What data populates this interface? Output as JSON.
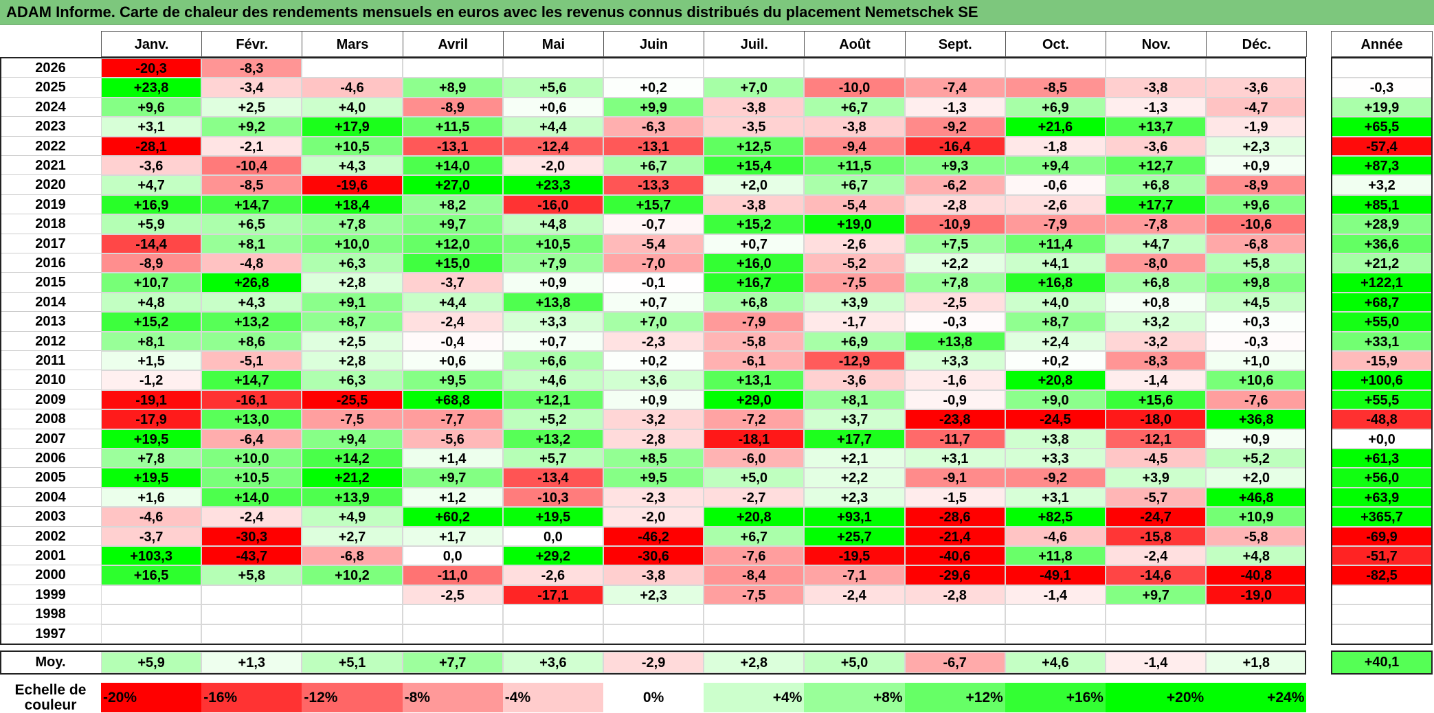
{
  "title": "ADAM Informe. Carte de chaleur des rendements mensuels en euros avec les revenus connus distribués du placement Nemetschek SE",
  "colors": {
    "title_bg": "#7dc77d",
    "positive_max": "#00ff00",
    "negative_max": "#ff0000",
    "neutral": "#ffffff"
  },
  "chart_data": {
    "type": "heatmap",
    "months": [
      "Janv.",
      "Févr.",
      "Mars",
      "Avril",
      "Mai",
      "Juin",
      "Juil.",
      "Août",
      "Sept.",
      "Oct.",
      "Nov.",
      "Déc."
    ],
    "year_header": "Année",
    "rows": [
      {
        "year": "2026",
        "values": [
          "-20,3",
          "-8,3",
          "",
          "",
          "",
          "",
          "",
          "",
          "",
          "",
          "",
          ""
        ],
        "annual": ""
      },
      {
        "year": "2025",
        "values": [
          "+23,8",
          "-3,4",
          "-4,6",
          "+8,9",
          "+5,6",
          "+0,2",
          "+7,0",
          "-10,0",
          "-7,4",
          "-8,5",
          "-3,8",
          "-3,6"
        ],
        "annual": "-0,3"
      },
      {
        "year": "2024",
        "values": [
          "+9,6",
          "+2,5",
          "+4,0",
          "-8,9",
          "+0,6",
          "+9,9",
          "-3,8",
          "+6,7",
          "-1,3",
          "+6,9",
          "-1,3",
          "-4,7"
        ],
        "annual": "+19,9"
      },
      {
        "year": "2023",
        "values": [
          "+3,1",
          "+9,2",
          "+17,9",
          "+11,5",
          "+4,4",
          "-6,3",
          "-3,5",
          "-3,8",
          "-9,2",
          "+21,6",
          "+13,7",
          "-1,9"
        ],
        "annual": "+65,5"
      },
      {
        "year": "2022",
        "values": [
          "-28,1",
          "-2,1",
          "+10,5",
          "-13,1",
          "-12,4",
          "-13,1",
          "+12,5",
          "-9,4",
          "-16,4",
          "-1,8",
          "-3,6",
          "+2,3"
        ],
        "annual": "-57,4"
      },
      {
        "year": "2021",
        "values": [
          "-3,6",
          "-10,4",
          "+4,3",
          "+14,0",
          "-2,0",
          "+6,7",
          "+15,4",
          "+11,5",
          "+9,3",
          "+9,4",
          "+12,7",
          "+0,9"
        ],
        "annual": "+87,3"
      },
      {
        "year": "2020",
        "values": [
          "+4,7",
          "-8,5",
          "-19,6",
          "+27,0",
          "+23,3",
          "-13,3",
          "+2,0",
          "+6,7",
          "-6,2",
          "-0,6",
          "+6,8",
          "-8,9"
        ],
        "annual": "+3,2"
      },
      {
        "year": "2019",
        "values": [
          "+16,9",
          "+14,7",
          "+18,4",
          "+8,2",
          "-16,0",
          "+15,7",
          "-3,8",
          "-5,4",
          "-2,8",
          "-2,6",
          "+17,7",
          "+9,6"
        ],
        "annual": "+85,1"
      },
      {
        "year": "2018",
        "values": [
          "+5,9",
          "+6,5",
          "+7,8",
          "+9,7",
          "+4,8",
          "-0,7",
          "+15,2",
          "+19,0",
          "-10,9",
          "-7,9",
          "-7,8",
          "-10,6"
        ],
        "annual": "+28,9"
      },
      {
        "year": "2017",
        "values": [
          "-14,4",
          "+8,1",
          "+10,0",
          "+12,0",
          "+10,5",
          "-5,4",
          "+0,7",
          "-2,6",
          "+7,5",
          "+11,4",
          "+4,7",
          "-6,8"
        ],
        "annual": "+36,6"
      },
      {
        "year": "2016",
        "values": [
          "-8,9",
          "-4,8",
          "+6,3",
          "+15,0",
          "+7,9",
          "-7,0",
          "+16,0",
          "-5,2",
          "+2,2",
          "+4,1",
          "-8,0",
          "+5,8"
        ],
        "annual": "+21,2"
      },
      {
        "year": "2015",
        "values": [
          "+10,7",
          "+26,8",
          "+2,8",
          "-3,7",
          "+0,9",
          "-0,1",
          "+16,7",
          "-7,5",
          "+7,8",
          "+16,8",
          "+6,8",
          "+9,8"
        ],
        "annual": "+122,1"
      },
      {
        "year": "2014",
        "values": [
          "+4,8",
          "+4,3",
          "+9,1",
          "+4,4",
          "+13,8",
          "+0,7",
          "+6,8",
          "+3,9",
          "-2,5",
          "+4,0",
          "+0,8",
          "+4,5"
        ],
        "annual": "+68,7"
      },
      {
        "year": "2013",
        "values": [
          "+15,2",
          "+13,2",
          "+8,7",
          "-2,4",
          "+3,3",
          "+7,0",
          "-7,9",
          "-1,7",
          "-0,3",
          "+8,7",
          "+3,2",
          "+0,3"
        ],
        "annual": "+55,0"
      },
      {
        "year": "2012",
        "values": [
          "+8,1",
          "+8,6",
          "+2,5",
          "-0,4",
          "+0,7",
          "-2,3",
          "-5,8",
          "+6,9",
          "+13,8",
          "+2,4",
          "-3,2",
          "-0,3"
        ],
        "annual": "+33,1"
      },
      {
        "year": "2011",
        "values": [
          "+1,5",
          "-5,1",
          "+2,8",
          "+0,6",
          "+6,6",
          "+0,2",
          "-6,1",
          "-12,9",
          "+3,3",
          "+0,2",
          "-8,3",
          "+1,0"
        ],
        "annual": "-15,9"
      },
      {
        "year": "2010",
        "values": [
          "-1,2",
          "+14,7",
          "+6,3",
          "+9,5",
          "+4,6",
          "+3,6",
          "+13,1",
          "-3,6",
          "-1,6",
          "+20,8",
          "-1,4",
          "+10,6"
        ],
        "annual": "+100,6"
      },
      {
        "year": "2009",
        "values": [
          "-19,1",
          "-16,1",
          "-25,5",
          "+68,8",
          "+12,1",
          "+0,9",
          "+29,0",
          "+8,1",
          "-0,9",
          "+9,0",
          "+15,6",
          "-7,6"
        ],
        "annual": "+55,5"
      },
      {
        "year": "2008",
        "values": [
          "-17,9",
          "+13,0",
          "-7,5",
          "-7,7",
          "+5,2",
          "-3,2",
          "-7,2",
          "+3,7",
          "-23,8",
          "-24,5",
          "-18,0",
          "+36,8"
        ],
        "annual": "-48,8"
      },
      {
        "year": "2007",
        "values": [
          "+19,5",
          "-6,4",
          "+9,4",
          "-5,6",
          "+13,2",
          "-2,8",
          "-18,1",
          "+17,7",
          "-11,7",
          "+3,8",
          "-12,1",
          "+0,9"
        ],
        "annual": "+0,0"
      },
      {
        "year": "2006",
        "values": [
          "+7,8",
          "+10,0",
          "+14,2",
          "+1,4",
          "+5,7",
          "+8,5",
          "-6,0",
          "+2,1",
          "+3,1",
          "+3,3",
          "-4,5",
          "+5,2"
        ],
        "annual": "+61,3"
      },
      {
        "year": "2005",
        "values": [
          "+19,5",
          "+10,5",
          "+21,2",
          "+9,7",
          "-13,4",
          "+9,5",
          "+5,0",
          "+2,2",
          "-9,1",
          "-9,2",
          "+3,9",
          "+2,0"
        ],
        "annual": "+56,0"
      },
      {
        "year": "2004",
        "values": [
          "+1,6",
          "+14,0",
          "+13,9",
          "+1,2",
          "-10,3",
          "-2,3",
          "-2,7",
          "+2,3",
          "-1,5",
          "+3,1",
          "-5,7",
          "+46,8"
        ],
        "annual": "+63,9"
      },
      {
        "year": "2003",
        "values": [
          "-4,6",
          "-2,4",
          "+4,9",
          "+60,2",
          "+19,5",
          "-2,0",
          "+20,8",
          "+93,1",
          "-28,6",
          "+82,5",
          "-24,7",
          "+10,9"
        ],
        "annual": "+365,7"
      },
      {
        "year": "2002",
        "values": [
          "-3,7",
          "-30,3",
          "+2,7",
          "+1,7",
          "0,0",
          "-46,2",
          "+6,7",
          "+25,7",
          "-21,4",
          "-4,6",
          "-15,8",
          "-5,8"
        ],
        "annual": "-69,9"
      },
      {
        "year": "2001",
        "values": [
          "+103,3",
          "-43,7",
          "-6,8",
          "0,0",
          "+29,2",
          "-30,6",
          "-7,6",
          "-19,5",
          "-40,6",
          "+11,8",
          "-2,4",
          "+4,8"
        ],
        "annual": "-51,7"
      },
      {
        "year": "2000",
        "values": [
          "+16,5",
          "+5,8",
          "+10,2",
          "-11,0",
          "-2,6",
          "-3,8",
          "-8,4",
          "-7,1",
          "-29,6",
          "-49,1",
          "-14,6",
          "-40,8"
        ],
        "annual": "-82,5"
      },
      {
        "year": "1999",
        "values": [
          "",
          "",
          "",
          "-2,5",
          "-17,1",
          "+2,3",
          "-7,5",
          "-2,4",
          "-2,8",
          "-1,4",
          "+9,7",
          "-19,0"
        ],
        "annual": ""
      },
      {
        "year": "1998",
        "values": [
          "",
          "",
          "",
          "",
          "",
          "",
          "",
          "",
          "",
          "",
          "",
          ""
        ],
        "annual": ""
      },
      {
        "year": "1997",
        "values": [
          "",
          "",
          "",
          "",
          "",
          "",
          "",
          "",
          "",
          "",
          "",
          ""
        ],
        "annual": ""
      }
    ],
    "average": {
      "label": "Moy.",
      "values": [
        "+5,9",
        "+1,3",
        "+5,1",
        "+7,7",
        "+3,6",
        "-2,9",
        "+2,8",
        "+5,0",
        "-6,7",
        "+4,6",
        "-1,4",
        "+1,8"
      ],
      "annual": "+40,1"
    },
    "legend": {
      "label": "Echelle de couleur",
      "steps": [
        {
          "text": "-20%",
          "value": -20
        },
        {
          "text": "-16%",
          "value": -16
        },
        {
          "text": "-12%",
          "value": -12
        },
        {
          "text": "-8%",
          "value": -8
        },
        {
          "text": "-4%",
          "value": -4
        },
        {
          "text": "0%",
          "value": 0
        },
        {
          "text": "+4%",
          "value": 4
        },
        {
          "text": "+8%",
          "value": 8
        },
        {
          "text": "+12%",
          "value": 12
        },
        {
          "text": "+16%",
          "value": 16
        },
        {
          "text": "+20%",
          "value": 20
        },
        {
          "text": "+24%",
          "value": 24
        }
      ]
    }
  }
}
